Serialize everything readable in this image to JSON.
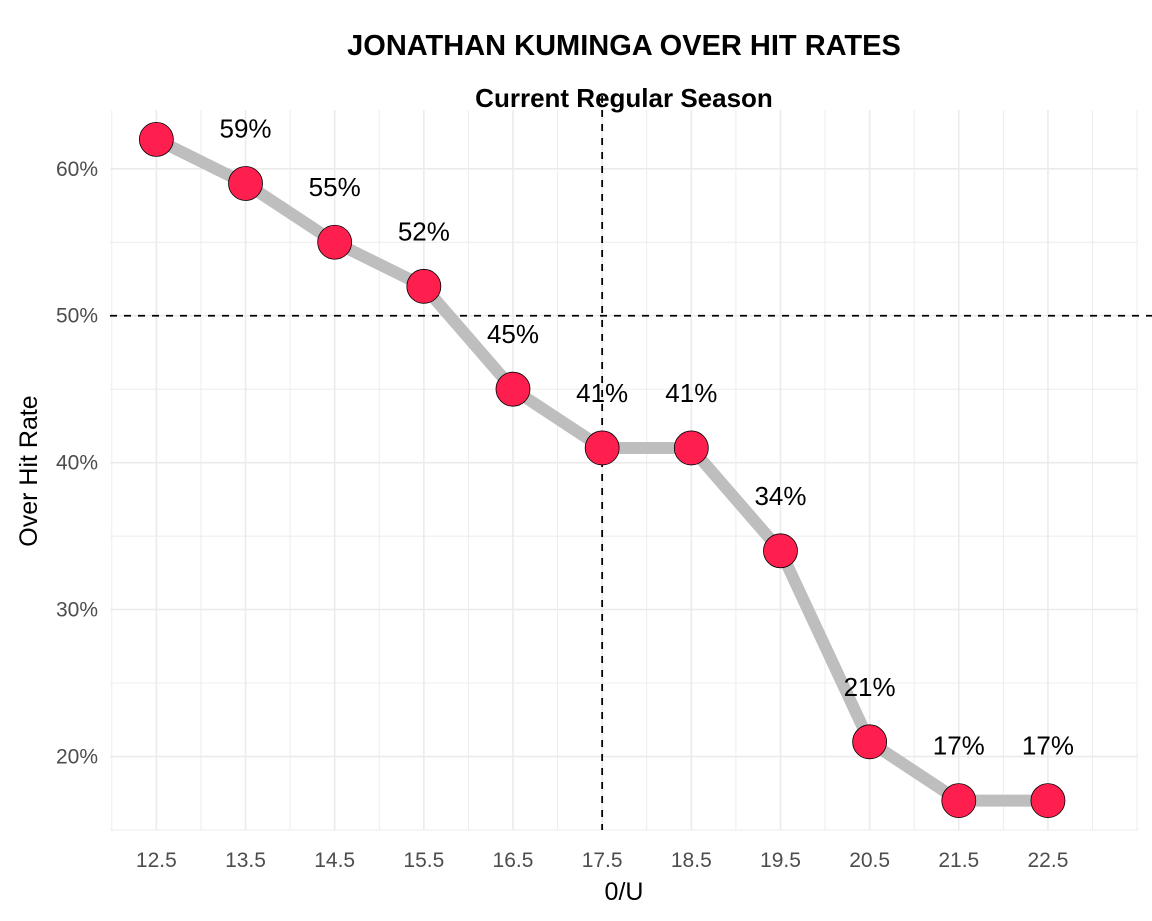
{
  "chart_data": {
    "type": "line",
    "title": "JONATHAN KUMINGA OVER HIT RATES",
    "subtitle": "Current Regular Season",
    "xlabel": "0/U",
    "ylabel": "Over Hit Rate",
    "x": [
      12.5,
      13.5,
      14.5,
      15.5,
      16.5,
      17.5,
      18.5,
      19.5,
      20.5,
      21.5,
      22.5
    ],
    "x_tick_labels": [
      "12.5",
      "13.5",
      "14.5",
      "15.5",
      "16.5",
      "17.5",
      "18.5",
      "19.5",
      "20.5",
      "21.5",
      "22.5"
    ],
    "values": [
      62,
      59,
      55,
      52,
      45,
      41,
      41,
      34,
      21,
      17,
      17
    ],
    "data_labels": [
      "",
      "59%",
      "55%",
      "52%",
      "45%",
      "41%",
      "41%",
      "34%",
      "21%",
      "17%",
      "17%"
    ],
    "y_ticks": [
      20,
      30,
      40,
      50,
      60
    ],
    "y_tick_labels": [
      "20%",
      "30%",
      "40%",
      "50%",
      "60%"
    ],
    "xlim": [
      11.98,
      23.51
    ],
    "ylim": [
      15,
      64
    ],
    "reference_lines": {
      "vertical_x": 17.5,
      "horizontal_y": 50,
      "style": "dashed"
    },
    "grid": true,
    "legend": "none",
    "colors": {
      "line": "#bebebe",
      "point_fill": "#ff1f4f",
      "point_stroke": "#000000",
      "grid": "#ebebeb",
      "ref_line": "#000000"
    }
  }
}
